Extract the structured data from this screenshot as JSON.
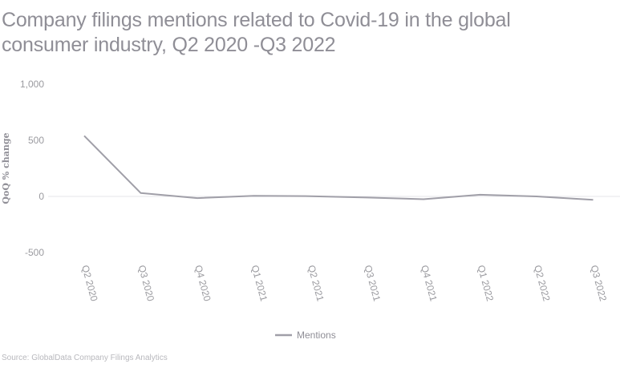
{
  "title": "Company filings mentions related to Covid-19 in the global consumer industry, Q2 2020 -Q3 2022",
  "source": "Source: GlobalData Company Filings Analytics",
  "colors": {
    "line": "#a09fa8",
    "text": "#8f8e96",
    "zero_line": "#e6e6e9"
  },
  "chart_data": {
    "type": "line",
    "title": "Company filings mentions related to Covid-19 in the global consumer industry, Q2 2020 -Q3 2022",
    "ylabel": "QoQ % change",
    "xlabel": "",
    "categories": [
      "Q2 2020",
      "Q3 2020",
      "Q4 2020",
      "Q1 2021",
      "Q2 2021",
      "Q3 2021",
      "Q4 2021",
      "Q1 2022",
      "Q2 2022",
      "Q3 2022"
    ],
    "y_ticks": [
      1000,
      500,
      0,
      -500
    ],
    "y_tick_labels": [
      "1,000",
      "500",
      "0",
      "-500"
    ],
    "ylim": [
      -500,
      1000
    ],
    "series": [
      {
        "name": "Mentions",
        "values": [
          540,
          30,
          -15,
          5,
          2,
          -10,
          -25,
          15,
          0,
          -30
        ]
      }
    ],
    "legend_position": "bottom-center",
    "grid": false
  }
}
